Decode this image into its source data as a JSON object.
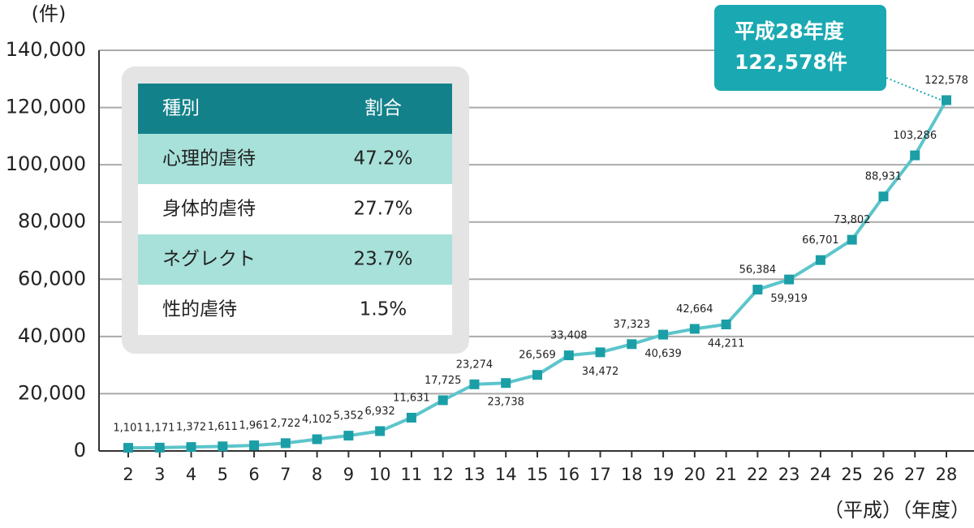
{
  "chart_data": {
    "type": "line",
    "y_axis_label": "(件)",
    "x_axis_label": "（平成）（年度）",
    "annotation": [
      "平成28年度",
      "122,578件"
    ],
    "categories": [
      "2",
      "3",
      "4",
      "5",
      "6",
      "7",
      "8",
      "9",
      "10",
      "11",
      "12",
      "13",
      "14",
      "15",
      "16",
      "17",
      "18",
      "19",
      "20",
      "21",
      "22",
      "23",
      "24",
      "25",
      "26",
      "27",
      "28"
    ],
    "series": [
      {
        "color": "#5cc5cb",
        "marker_color": "#1b9ea6",
        "values": [
          1101,
          1171,
          1372,
          1611,
          1961,
          2722,
          4102,
          5352,
          6932,
          11631,
          17725,
          23274,
          23738,
          26569,
          33408,
          34472,
          37323,
          40639,
          42664,
          44211,
          56384,
          59919,
          66701,
          73802,
          88931,
          103286,
          122578
        ],
        "value_labels": [
          "1,101",
          "1,171",
          "1,372",
          "1,611",
          "1,961",
          "2,722",
          "4,102",
          "5,352",
          "6,932",
          "11,631",
          "17,725",
          "23,274",
          "23,738",
          "26,569",
          "33,408",
          "34,472",
          "37,323",
          "40,639",
          "42,664",
          "44,211",
          "56,384",
          "59,919",
          "66,701",
          "73,802",
          "88,931",
          "103,286",
          "122,578"
        ]
      }
    ],
    "ylim": [
      0,
      140000
    ],
    "yticks": [
      0,
      {
        "value": 20000,
        "label": "20,000"
      },
      {
        "value": 40000,
        "label": "40,000"
      },
      {
        "value": 60000,
        "label": "60,000"
      },
      {
        "value": 80000,
        "label": "80,000"
      },
      {
        "value": 100000,
        "label": "100,000"
      },
      {
        "value": 120000,
        "label": "120,000"
      },
      {
        "value": 140000,
        "label": "140,000"
      }
    ],
    "grid": true
  },
  "table": {
    "header": [
      "種別",
      "割合"
    ],
    "rows": [
      [
        "心理的虐待",
        "47.2%"
      ],
      [
        "身体的虐待",
        "27.7%"
      ],
      [
        "ネグレクト",
        "23.7%"
      ],
      [
        "性的虐待",
        "1.5%"
      ]
    ]
  }
}
